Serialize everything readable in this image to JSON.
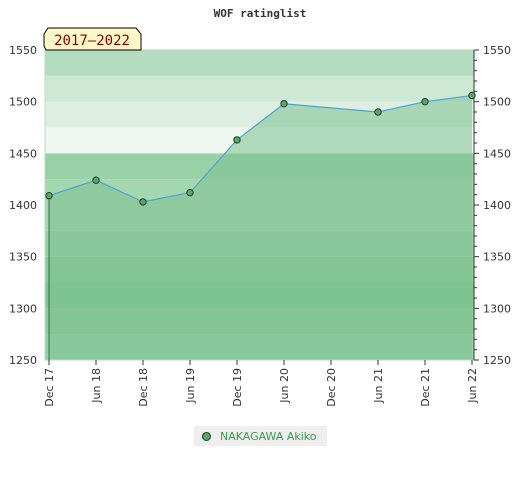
{
  "chart_data": {
    "type": "area",
    "title": "WOF ratinglist",
    "badge": "2017–2022",
    "x_ticks": [
      "Dec 17",
      "Jun 18",
      "Dec 18",
      "Jun 19",
      "Dec 19",
      "Jun 20",
      "Dec 20",
      "Jun 21",
      "Dec 21",
      "Jun 22"
    ],
    "y_ticks": [
      1250,
      1300,
      1350,
      1400,
      1450,
      1500,
      1550
    ],
    "ylim": [
      1250,
      1550
    ],
    "series": [
      {
        "name": "NAKAGAWA Akiko",
        "x": [
          "Dec 17",
          "Jun 18",
          "Dec 18",
          "Jun 19",
          "Dec 19",
          "Jun 20",
          "Jun 21",
          "Dec 21",
          "Jun 22"
        ],
        "values": [
          1409,
          1424,
          1403,
          1412,
          1463,
          1498,
          1490,
          1500,
          1506
        ]
      }
    ],
    "grid": true,
    "legend": "bottom",
    "colors": {
      "line": "#4aa3d6",
      "fill": "#7cc190",
      "marker": "#5aa56a",
      "marker_stroke": "#1f3f22",
      "badge_bg": "#fdf8c8",
      "badge_text": "#8b0000",
      "legend_text": "#3a9a50"
    }
  }
}
